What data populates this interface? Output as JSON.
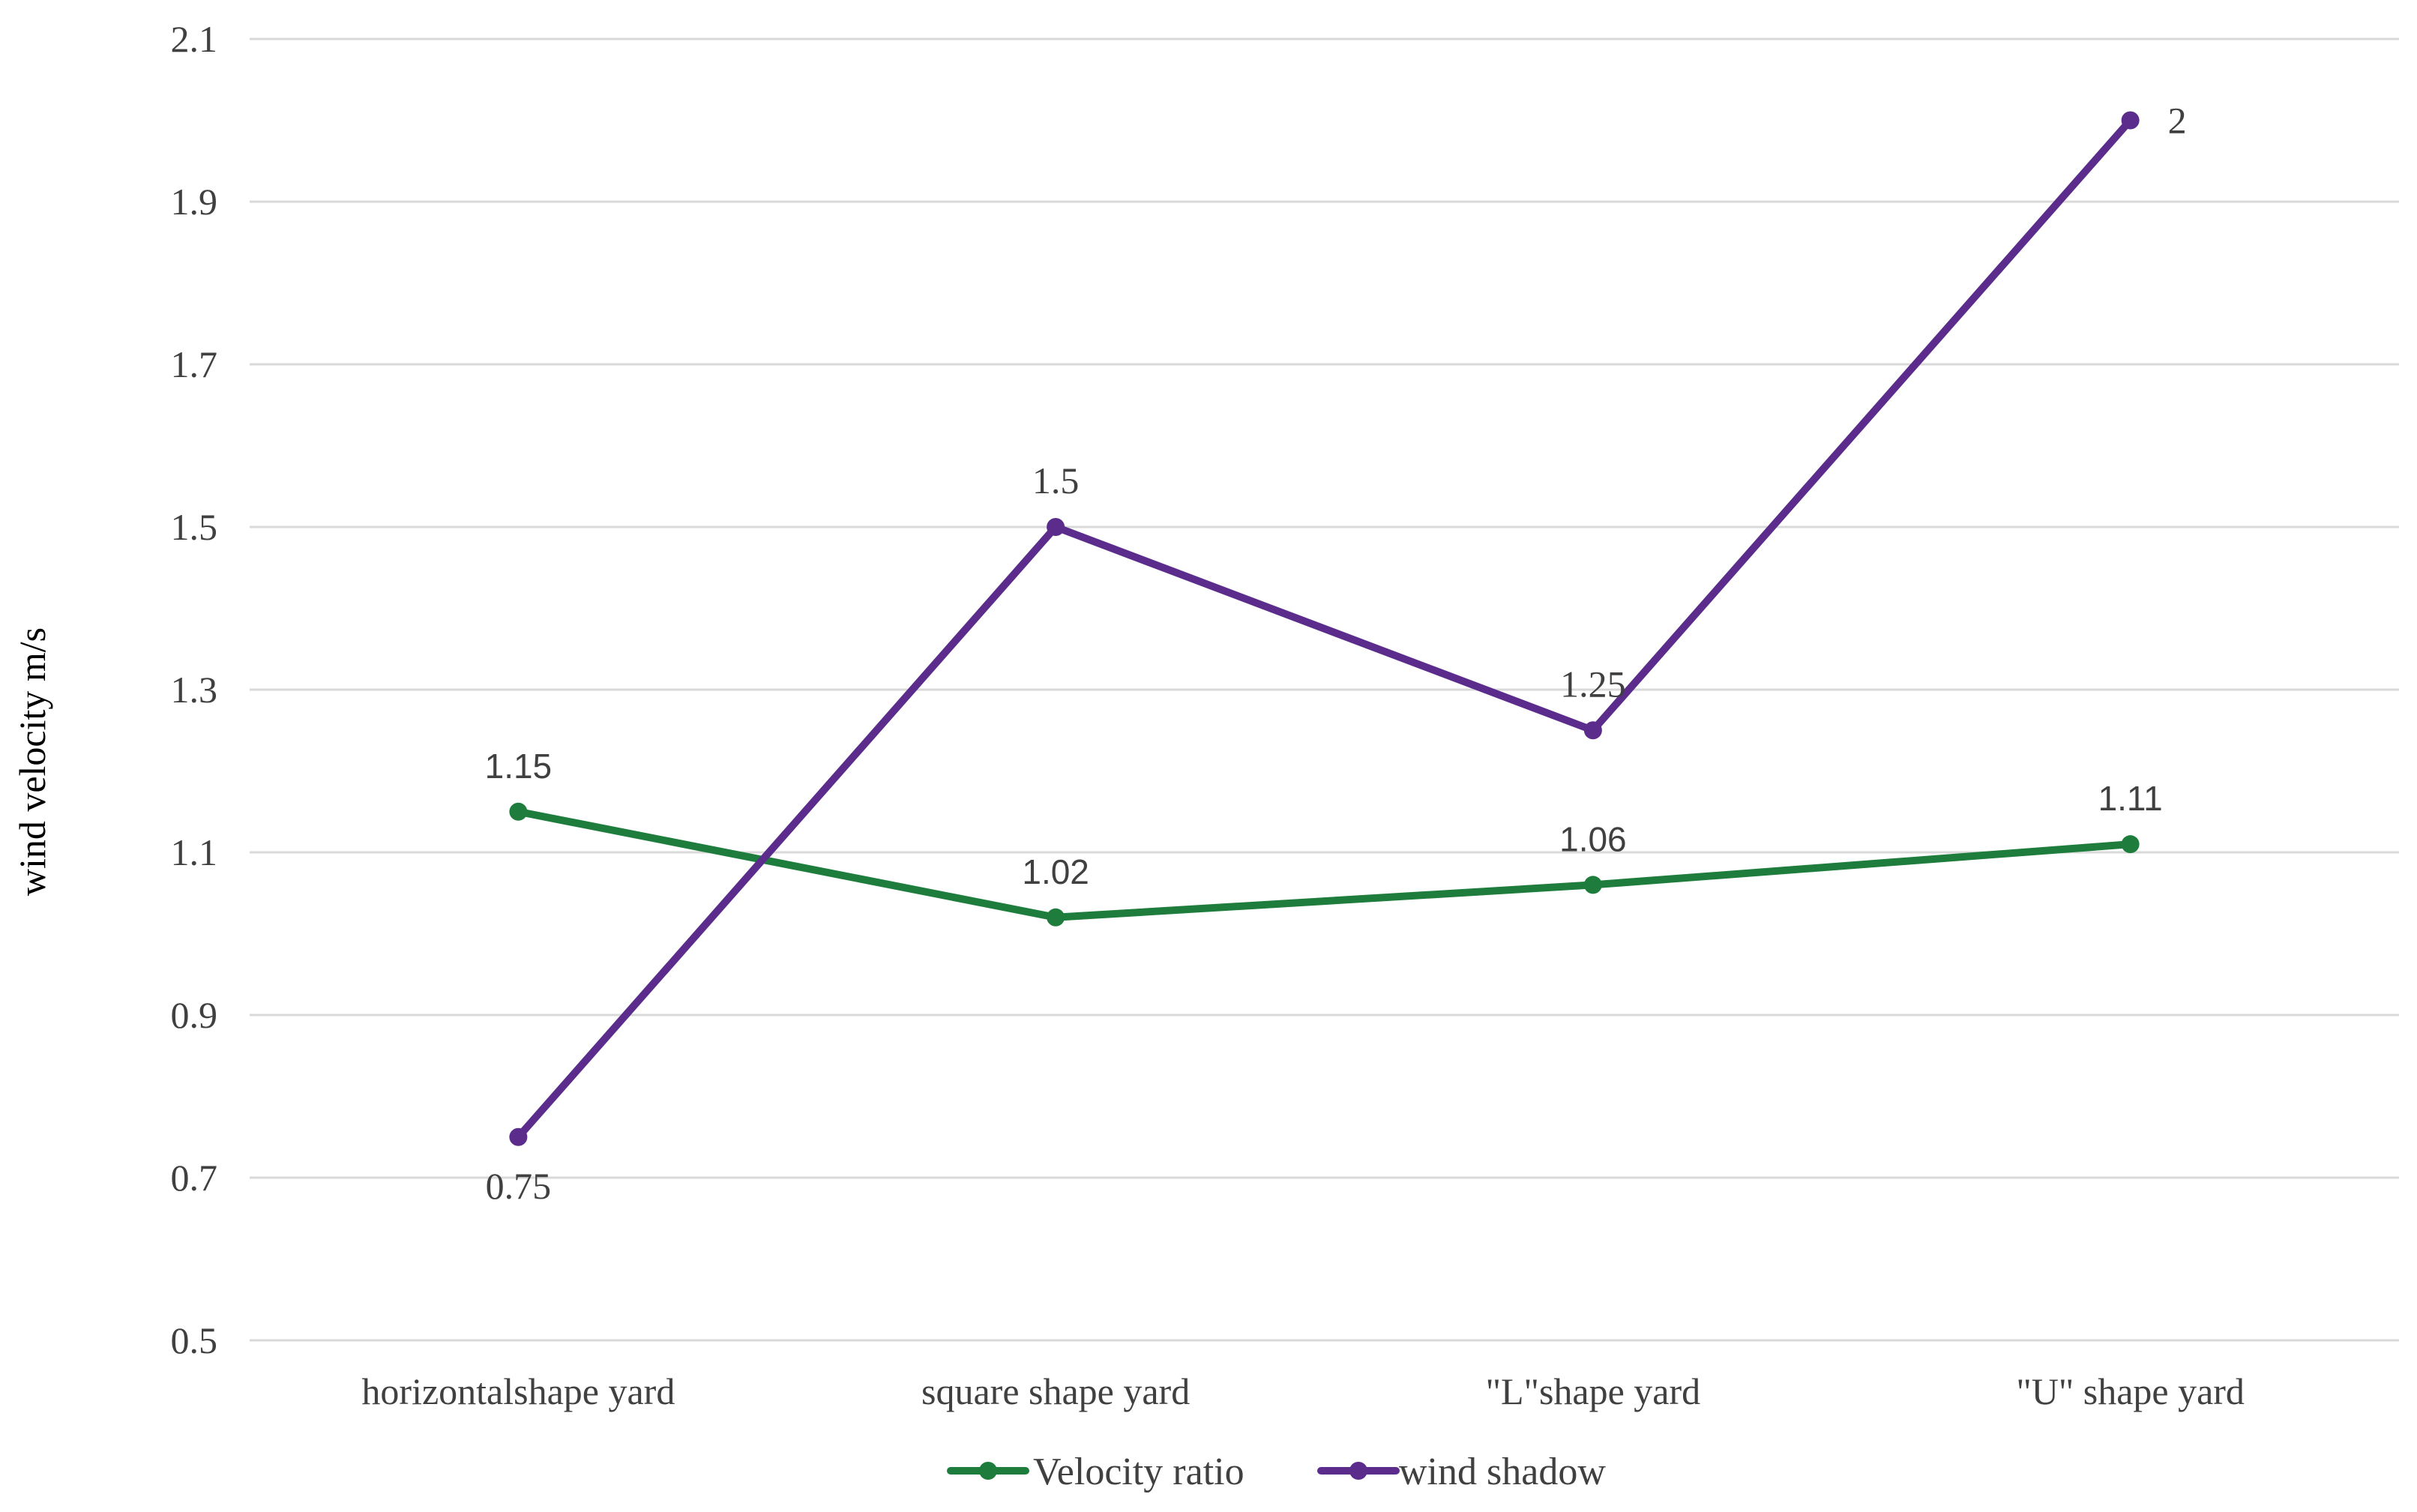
{
  "chart_data": {
    "type": "line",
    "categories": [
      "horizontalshape yard",
      "square shape yard",
      "\"L\"shape yard",
      "\"U\" shape yard"
    ],
    "series": [
      {
        "name": "Velocity ratio",
        "values": [
          1.15,
          1.02,
          1.06,
          1.11
        ],
        "color": "#1e7d3c",
        "data_labels": [
          "1.15",
          "1.02",
          "1.06",
          "1.11"
        ]
      },
      {
        "name": "wind shadow",
        "values": [
          0.75,
          1.5,
          1.25,
          2
        ],
        "color": "#5b2c8c",
        "data_labels": [
          "0.75",
          "1.5",
          "1.25",
          "2"
        ]
      }
    ],
    "title": "",
    "xlabel": "",
    "ylabel": "wind velocity m/s",
    "ylim": [
      0.5,
      2.1
    ],
    "yticks": [
      "0.5",
      "0.7",
      "0.9",
      "1.1",
      "1.3",
      "1.5",
      "1.7",
      "1.9",
      "2.1"
    ],
    "grid": true,
    "legend_position": "bottom"
  }
}
